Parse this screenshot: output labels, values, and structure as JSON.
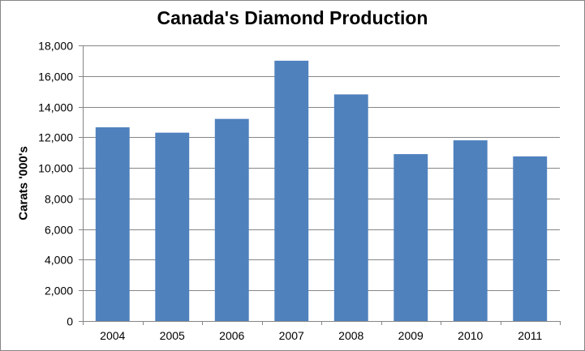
{
  "chart_data": {
    "type": "bar",
    "title": "Canada's Diamond Production",
    "xlabel": "",
    "ylabel": "Carats '000's",
    "categories": [
      "2004",
      "2005",
      "2006",
      "2007",
      "2008",
      "2009",
      "2010",
      "2011"
    ],
    "values": [
      12650,
      12300,
      13200,
      17000,
      14800,
      10900,
      11800,
      10750
    ],
    "ylim": [
      0,
      18000
    ],
    "yticks": [
      0,
      2000,
      4000,
      6000,
      8000,
      10000,
      12000,
      14000,
      16000,
      18000
    ],
    "ytick_labels": [
      "0",
      "2,000",
      "4,000",
      "6,000",
      "8,000",
      "10,000",
      "12,000",
      "14,000",
      "16,000",
      "18,000"
    ],
    "grid": true,
    "legend": "none",
    "bar_color": "#4F81BD",
    "grid_color": "#868686"
  }
}
